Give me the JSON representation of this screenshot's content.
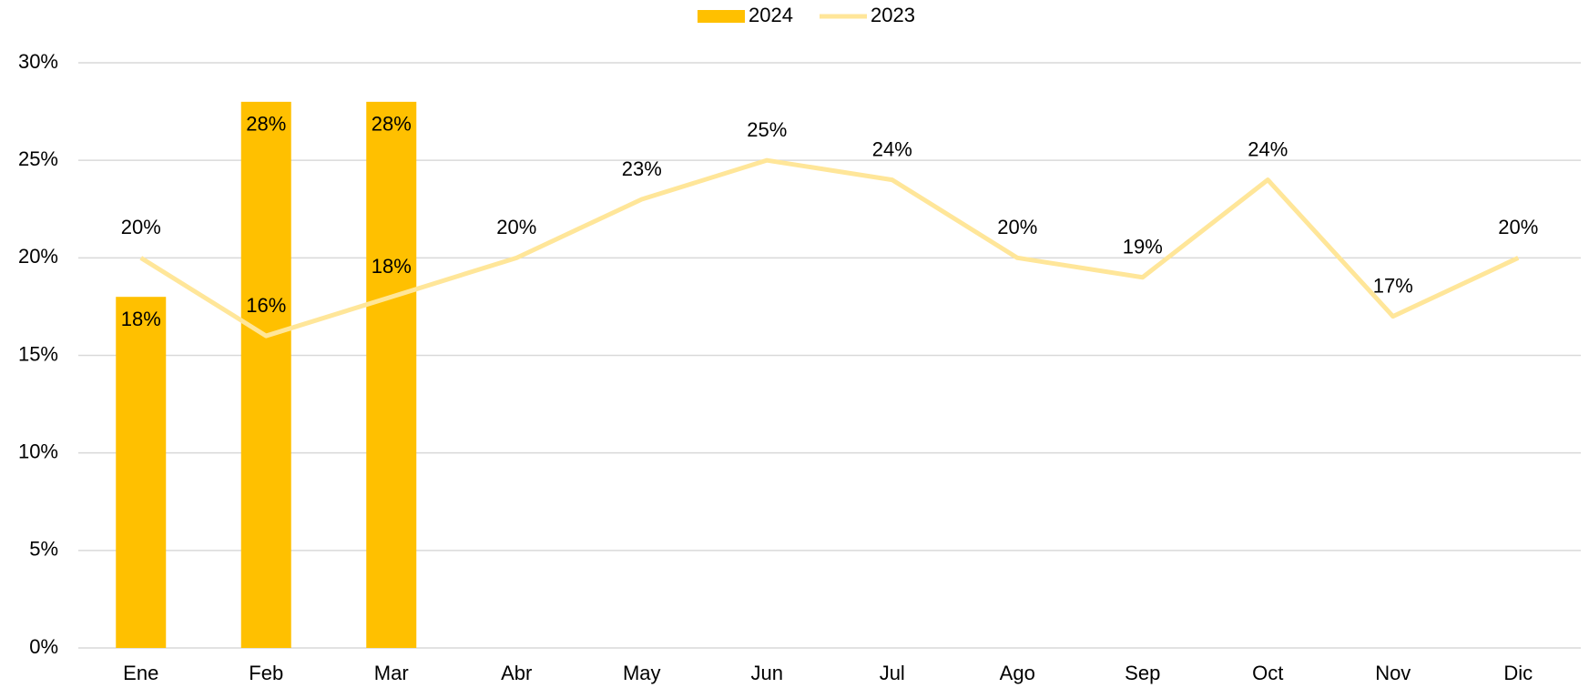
{
  "chart_data": {
    "type": "bar-line",
    "categories": [
      "Ene",
      "Feb",
      "Mar",
      "Abr",
      "May",
      "Jun",
      "Jul",
      "Ago",
      "Sep",
      "Oct",
      "Nov",
      "Dic"
    ],
    "series": [
      {
        "name": "2024",
        "type": "bar",
        "color": "#FFC000",
        "values": [
          18,
          28,
          28,
          null,
          null,
          null,
          null,
          null,
          null,
          null,
          null,
          null
        ],
        "value_labels": [
          "18%",
          "28%",
          "28%",
          null,
          null,
          null,
          null,
          null,
          null,
          null,
          null,
          null
        ]
      },
      {
        "name": "2023",
        "type": "line",
        "color": "#FFE699",
        "values": [
          20,
          16,
          18,
          20,
          23,
          25,
          24,
          20,
          19,
          24,
          17,
          20
        ],
        "value_labels": [
          "20%",
          "16%",
          "18%",
          "20%",
          "23%",
          "25%",
          "24%",
          "20%",
          "19%",
          "24%",
          "17%",
          "20%"
        ]
      }
    ],
    "ylim": [
      0,
      30
    ],
    "yticks": [
      {
        "value": 0,
        "label": "0%"
      },
      {
        "value": 5,
        "label": "5%"
      },
      {
        "value": 10,
        "label": "10%"
      },
      {
        "value": 15,
        "label": "15%"
      },
      {
        "value": 20,
        "label": "20%"
      },
      {
        "value": 25,
        "label": "25%"
      },
      {
        "value": 30,
        "label": "30%"
      }
    ],
    "grid": true,
    "legend": "top"
  }
}
